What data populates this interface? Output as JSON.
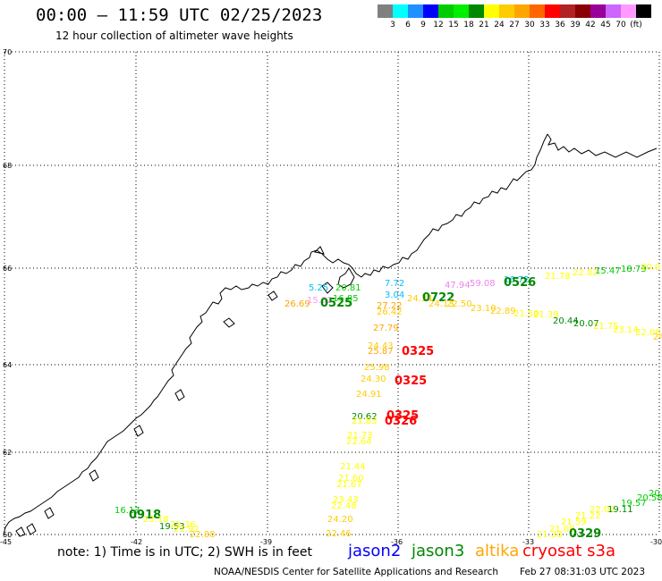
{
  "header": {
    "title": "00:00 – 11:59 UTC 02/25/2023",
    "subtitle": "12 hour collection of altimeter wave heights"
  },
  "color_scale": {
    "colors": [
      "#808080",
      "#00ffff",
      "#1e90ff",
      "#0000ff",
      "#00cc00",
      "#00ee00",
      "#008800",
      "#ffff00",
      "#ffcc00",
      "#ffa500",
      "#ff6600",
      "#ff0000",
      "#b22222",
      "#8b0000",
      "#990099",
      "#cc66ff",
      "#ff99ff",
      "#000000"
    ],
    "labels": [
      "3",
      "6",
      "9",
      "12",
      "15",
      "18",
      "21",
      "24",
      "27",
      "30",
      "33",
      "36",
      "39",
      "42",
      "45",
      "70",
      "(ft)"
    ]
  },
  "map": {
    "lat_labels": [
      "70",
      "68",
      "66",
      "64",
      "62",
      "60"
    ],
    "lon_labels": [
      "-45",
      "-42",
      "-39",
      "-36",
      "-33",
      "-30"
    ],
    "observations": [
      {
        "text": "26.69",
        "color": "#ffa500"
      },
      {
        "text": "15.92",
        "color": "#ff99ff"
      },
      {
        "text": "0525",
        "color": "#008800"
      },
      {
        "text": "5.25",
        "color": "#00bfff"
      },
      {
        "text": "20.81",
        "color": "#00cc00"
      },
      {
        "text": "16.85",
        "color": "#00cc00"
      },
      {
        "text": "7.72",
        "color": "#00bfff"
      },
      {
        "text": "3.04",
        "color": "#00bfff"
      },
      {
        "text": "24.34",
        "color": "#ffcc00"
      },
      {
        "text": "0722",
        "color": "#008800"
      },
      {
        "text": "24.13",
        "color": "#ffcc00"
      },
      {
        "text": "22.50",
        "color": "#ffcc00"
      },
      {
        "text": "27.22",
        "color": "#ffa500"
      },
      {
        "text": "26.42",
        "color": "#ffcc00"
      },
      {
        "text": "27.79",
        "color": "#ffa500"
      },
      {
        "text": "24.43",
        "color": "#ffcc00"
      },
      {
        "text": "25.87",
        "color": "#ffa500"
      },
      {
        "text": "0325",
        "color": "#ff0000"
      },
      {
        "text": "25.98",
        "color": "#ffcc00"
      },
      {
        "text": "24.30",
        "color": "#ffcc00"
      },
      {
        "text": "0325",
        "color": "#ff0000"
      },
      {
        "text": "24.91",
        "color": "#ffcc00"
      },
      {
        "text": "20.62",
        "color": "#008800"
      },
      {
        "text": "21.83",
        "color": "#ffff00"
      },
      {
        "text": "0325",
        "color": "#ff0000"
      },
      {
        "text": "0326",
        "color": "#ff0000"
      },
      {
        "text": "21.73",
        "color": "#ffff00"
      },
      {
        "text": "22.64",
        "color": "#ffff00"
      },
      {
        "text": "21.44",
        "color": "#ffff00"
      },
      {
        "text": "21.60",
        "color": "#ffff00"
      },
      {
        "text": "21.67",
        "color": "#ffff00"
      },
      {
        "text": "23.43",
        "color": "#ffff00"
      },
      {
        "text": "22.48",
        "color": "#ffff00"
      },
      {
        "text": "24.20",
        "color": "#ffcc00"
      },
      {
        "text": "22.46",
        "color": "#ffcc00"
      },
      {
        "text": "16.17",
        "color": "#00cc00"
      },
      {
        "text": "0918",
        "color": "#008800"
      },
      {
        "text": "23.18",
        "color": "#ffff00"
      },
      {
        "text": "19.53",
        "color": "#008800"
      },
      {
        "text": "21.36",
        "color": "#ffff00"
      },
      {
        "text": "21.92",
        "color": "#ffff00"
      },
      {
        "text": "22.88",
        "color": "#ffcc00"
      },
      {
        "text": "47.94",
        "color": "#ee82ee"
      },
      {
        "text": "59.08",
        "color": "#ee82ee"
      },
      {
        "text": "16.72",
        "color": "#00bfff"
      },
      {
        "text": "0526",
        "color": "#008800"
      },
      {
        "text": "21.78",
        "color": "#ffff00"
      },
      {
        "text": "22.82",
        "color": "#ffff00"
      },
      {
        "text": "15.47",
        "color": "#00cc00"
      },
      {
        "text": "18.73",
        "color": "#00cc00"
      },
      {
        "text": "20.0",
        "color": "#ffff00"
      },
      {
        "text": "23.10",
        "color": "#ffcc00"
      },
      {
        "text": "22.89",
        "color": "#ffcc00"
      },
      {
        "text": "21.50",
        "color": "#ffff00"
      },
      {
        "text": "21.39",
        "color": "#ffff00"
      },
      {
        "text": "20.44",
        "color": "#008800"
      },
      {
        "text": "20.07",
        "color": "#008800"
      },
      {
        "text": "21.75",
        "color": "#ffff00"
      },
      {
        "text": "23.14",
        "color": "#ffff00"
      },
      {
        "text": "22.06",
        "color": "#ffff00"
      },
      {
        "text": "24",
        "color": "#ffcc00"
      },
      {
        "text": "21.38",
        "color": "#ffff00"
      },
      {
        "text": "21.09",
        "color": "#ffff00"
      },
      {
        "text": "21.59",
        "color": "#ffff00"
      },
      {
        "text": "21.22",
        "color": "#ffff00"
      },
      {
        "text": "22.02",
        "color": "#ffff00"
      },
      {
        "text": "19.11",
        "color": "#008800"
      },
      {
        "text": "19.57",
        "color": "#00cc00"
      },
      {
        "text": "20.58",
        "color": "#00cc00"
      },
      {
        "text": "20.15",
        "color": "#00cc00"
      },
      {
        "text": "0329",
        "color": "#008800"
      }
    ]
  },
  "footer": {
    "note": "note: 1) Time is in UTC; 2) SWH is in feet",
    "satellites": [
      {
        "name": "jason2",
        "color": "#0000ff"
      },
      {
        "name": "jason3",
        "color": "#008800"
      },
      {
        "name": "altika",
        "color": "#ffa500"
      },
      {
        "name": "cryosat s3a",
        "color": "#ff0000"
      }
    ],
    "credit": "NOAA/NESDIS Center for Satellite Applications and Research",
    "timestamp": "Feb 27 08:31:03 UTC 2023"
  }
}
